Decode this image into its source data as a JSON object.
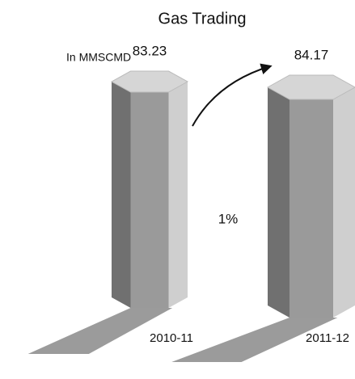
{
  "chart_data": {
    "type": "bar3d",
    "title": "Gas Trading",
    "subtitle": "In MMSCMD",
    "annotations": [
      "1%"
    ],
    "categories": [
      "2010-11",
      "2011-12"
    ],
    "values": [
      83.23,
      84.17
    ]
  }
}
